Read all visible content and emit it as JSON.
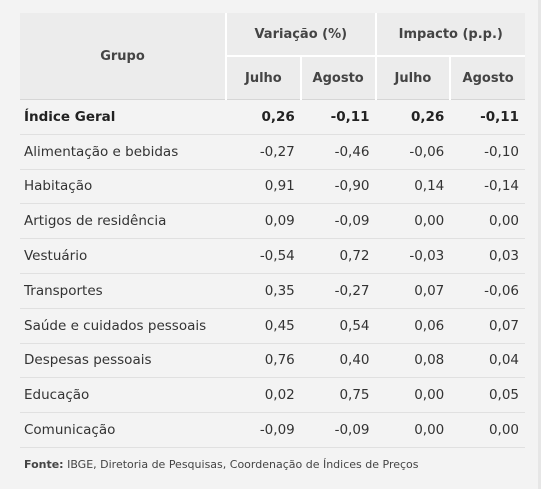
{
  "table": {
    "headers": {
      "grupo": "Grupo",
      "variacao": "Variação (%)",
      "impacto": "Impacto (p.p.)",
      "julho_var": "Julho",
      "agosto_var": "Agosto",
      "julho_imp": "Julho",
      "agosto_imp": "Agosto"
    },
    "rows": [
      {
        "grupo": "Índice Geral",
        "var_jul": "0,26",
        "var_ago": "-0,11",
        "imp_jul": "0,26",
        "imp_ago": "-0,11"
      },
      {
        "grupo": "Alimentação e bebidas",
        "var_jul": "-0,27",
        "var_ago": "-0,46",
        "imp_jul": "-0,06",
        "imp_ago": "-0,10"
      },
      {
        "grupo": "Habitação",
        "var_jul": "0,91",
        "var_ago": "-0,90",
        "imp_jul": "0,14",
        "imp_ago": "-0,14"
      },
      {
        "grupo": "Artigos de residência",
        "var_jul": "0,09",
        "var_ago": "-0,09",
        "imp_jul": "0,00",
        "imp_ago": "0,00"
      },
      {
        "grupo": "Vestuário",
        "var_jul": "-0,54",
        "var_ago": "0,72",
        "imp_jul": "-0,03",
        "imp_ago": "0,03"
      },
      {
        "grupo": "Transportes",
        "var_jul": "0,35",
        "var_ago": "-0,27",
        "imp_jul": "0,07",
        "imp_ago": "-0,06"
      },
      {
        "grupo": "Saúde e cuidados pessoais",
        "var_jul": "0,45",
        "var_ago": "0,54",
        "imp_jul": "0,06",
        "imp_ago": "0,07"
      },
      {
        "grupo": "Despesas pessoais",
        "var_jul": "0,76",
        "var_ago": "0,40",
        "imp_jul": "0,08",
        "imp_ago": "0,04"
      },
      {
        "grupo": "Educação",
        "var_jul": "0,02",
        "var_ago": "0,75",
        "imp_jul": "0,00",
        "imp_ago": "0,05"
      },
      {
        "grupo": "Comunicação",
        "var_jul": "-0,09",
        "var_ago": "-0,09",
        "imp_jul": "0,00",
        "imp_ago": "0,00"
      }
    ]
  },
  "source": {
    "label": "Fonte:",
    "text": " IBGE, Diretoria de Pesquisas, Coordenação de Índices de Preços"
  }
}
